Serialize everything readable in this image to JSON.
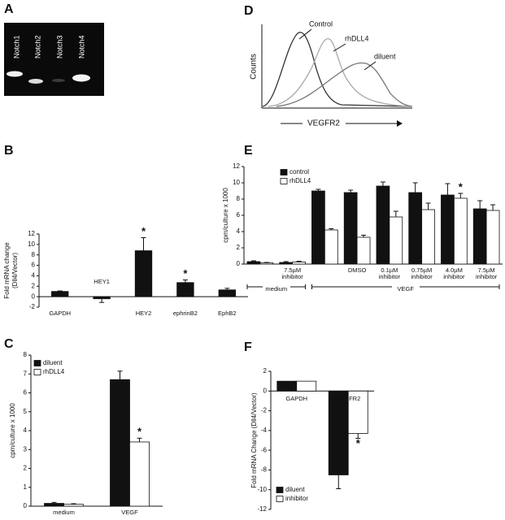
{
  "gel": {
    "label": "A",
    "lanes": [
      "Notch1",
      "Notch2",
      "Notch3",
      "Notch4"
    ]
  },
  "histogram": {
    "label": "D",
    "y_label": "Counts",
    "x_label": "VEGFR2",
    "curves": [
      "Control",
      "rhDLL4",
      "diluent"
    ]
  },
  "chart_data": [
    {
      "type": "bar",
      "label": "B",
      "y_label": [
        "Fold mRNA change",
        "(Dll4/Vector)"
      ],
      "categories": [
        "GAPDH",
        "HEY1",
        "HEY2",
        "ephrinB2",
        "EphB2"
      ],
      "values": [
        1.0,
        -0.4,
        8.8,
        2.7,
        1.3
      ],
      "errors": [
        0.1,
        0.7,
        2.5,
        0.5,
        0.3
      ],
      "significance": [
        null,
        null,
        "*",
        "*",
        null
      ],
      "color": "#111111",
      "ylim": [
        -2,
        12
      ],
      "yticks": [
        -2,
        0,
        2,
        4,
        6,
        8,
        10,
        12
      ]
    },
    {
      "type": "grouped_bar",
      "label": "C",
      "y_label": [
        "cpm/culture x 1000"
      ],
      "categories": [
        "medium",
        "VEGF"
      ],
      "series": [
        {
          "name": "diluent",
          "color": "#111111",
          "values": [
            0.15,
            6.7
          ],
          "errors": [
            0.05,
            0.45
          ],
          "significance": [
            null,
            null
          ]
        },
        {
          "name": "rhDLL4",
          "color": "#ffffff",
          "values": [
            0.1,
            3.4
          ],
          "errors": [
            0.03,
            0.2
          ],
          "significance": [
            null,
            "*"
          ]
        }
      ],
      "ylim": [
        0,
        8
      ],
      "yticks": [
        0,
        1,
        2,
        3,
        4,
        5,
        6,
        7,
        8
      ],
      "legend": "upper left"
    },
    {
      "type": "grouped_bar",
      "label": "E",
      "y_label": [
        "cpm/culture x 1000"
      ],
      "category_groups": [
        {
          "label": "medium",
          "categories": [
            null,
            "7.5µM inhibitor"
          ]
        },
        {
          "label": "VEGF",
          "categories": [
            null,
            "DMSO",
            "0.1µM inhibitor",
            "0.75µM inhibitor",
            "4.0µM inhibitor",
            "7.5µM inhibitor"
          ]
        }
      ],
      "series": [
        {
          "name": "control",
          "color": "#111111",
          "values": [
            0.3,
            0.2,
            9.0,
            8.8,
            9.6,
            8.8,
            8.5,
            6.8
          ],
          "errors": [
            0.1,
            0.1,
            0.2,
            0.3,
            0.5,
            1.2,
            1.4,
            1.0
          ],
          "significance": [
            null,
            null,
            null,
            null,
            null,
            null,
            null,
            null
          ]
        },
        {
          "name": "rhDLL4",
          "color": "#ffffff",
          "values": [
            0.15,
            0.25,
            4.2,
            3.3,
            5.8,
            6.7,
            8.1,
            6.6
          ],
          "errors": [
            0.05,
            0.1,
            0.15,
            0.25,
            0.7,
            0.8,
            0.6,
            0.7
          ],
          "significance": [
            null,
            null,
            null,
            null,
            null,
            null,
            "*",
            null
          ]
        }
      ],
      "ylim": [
        0,
        12
      ],
      "yticks": [
        0,
        2,
        4,
        6,
        8,
        10,
        12
      ],
      "legend": "upper left"
    },
    {
      "type": "grouped_bar",
      "label": "F",
      "y_label": [
        "Fold mRNA Change (Dll4/Vector)"
      ],
      "categories": [
        "GAPDH",
        "VEGFR2"
      ],
      "series": [
        {
          "name": "diluent",
          "color": "#111111",
          "values": [
            1,
            -8.5
          ],
          "errors": [
            null,
            1.4
          ],
          "significance": [
            null,
            null
          ]
        },
        {
          "name": "inhibitor",
          "color": "#ffffff",
          "values": [
            1,
            -4.3
          ],
          "errors": [
            null,
            0.5
          ],
          "significance": [
            null,
            "*"
          ]
        }
      ],
      "ylim": [
        -12,
        2
      ],
      "yticks": [
        -12,
        -10,
        -8,
        -6,
        -4,
        -2,
        0,
        2
      ],
      "legend": "lower left"
    }
  ]
}
